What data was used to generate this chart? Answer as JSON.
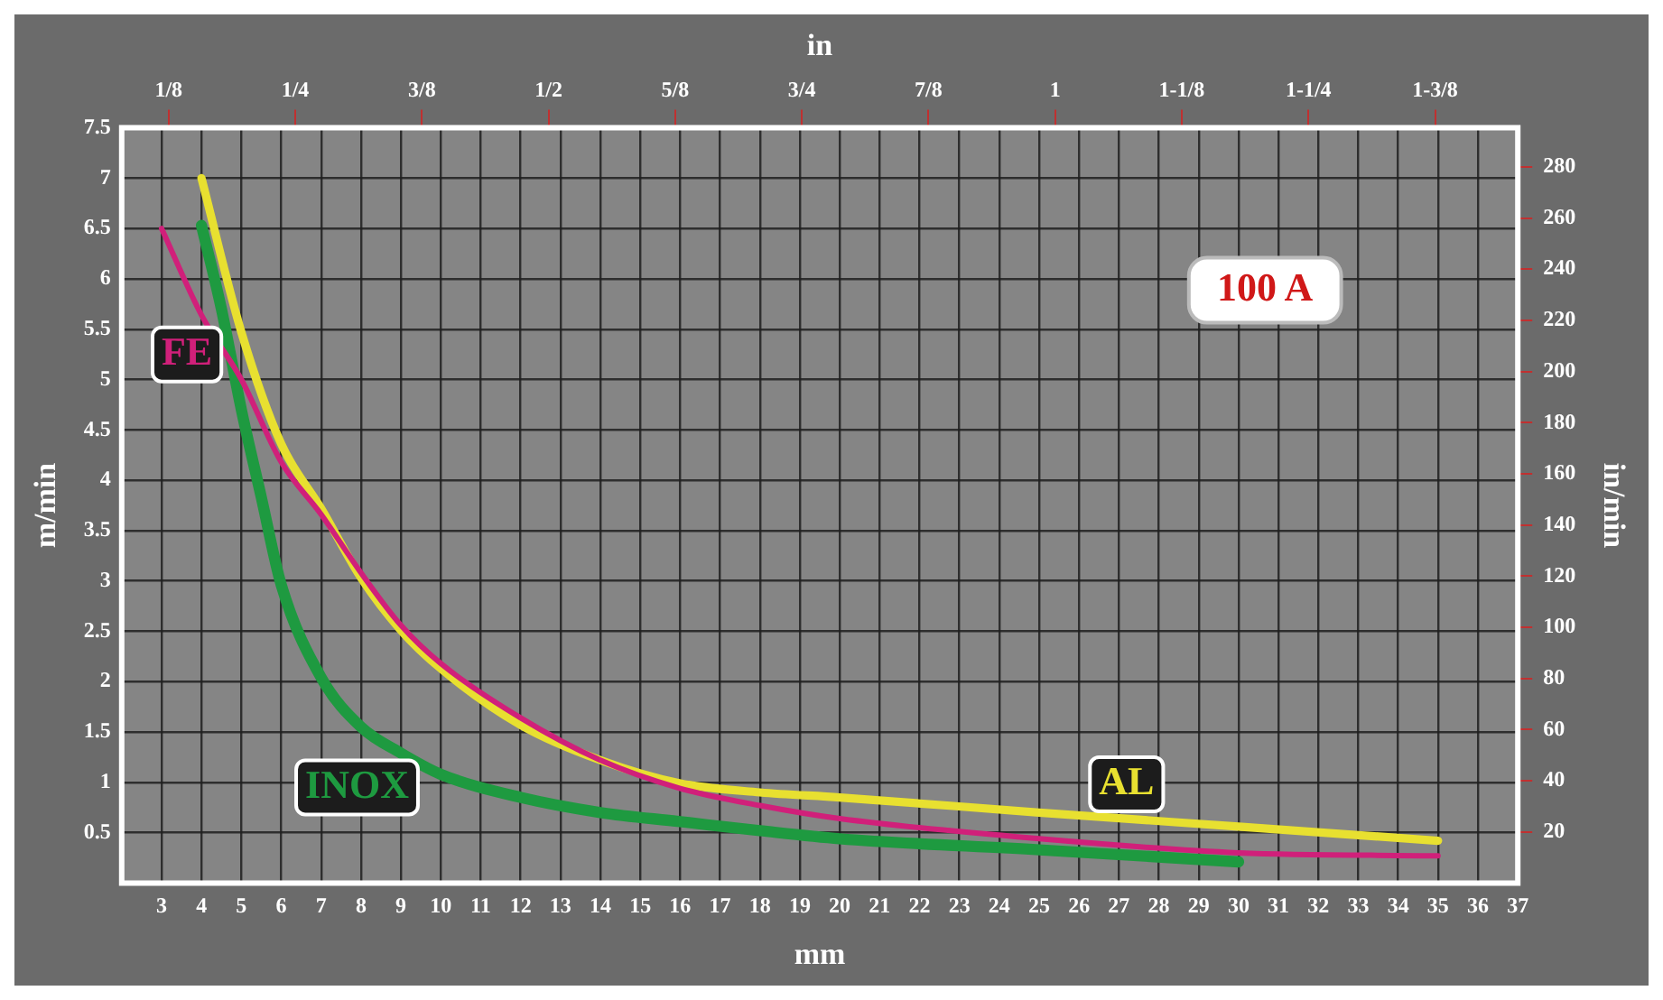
{
  "chart_data": {
    "type": "line",
    "xlabel": "mm",
    "x2label": "in",
    "ylabel": "m/min",
    "y2label": "in/min",
    "annotations": [
      "100 A"
    ],
    "xlim": [
      2,
      37
    ],
    "xticks": [
      3,
      4,
      5,
      6,
      7,
      8,
      9,
      10,
      11,
      12,
      13,
      14,
      15,
      16,
      17,
      18,
      19,
      20,
      21,
      22,
      23,
      24,
      25,
      26,
      27,
      28,
      29,
      30,
      31,
      32,
      33,
      34,
      35,
      36,
      37
    ],
    "x2lim": [
      0.0787,
      1.4567
    ],
    "x2ticks": [
      {
        "value": 0.125,
        "label": "1/8"
      },
      {
        "value": 0.25,
        "label": "1/4"
      },
      {
        "value": 0.375,
        "label": "3/8"
      },
      {
        "value": 0.5,
        "label": "1/2"
      },
      {
        "value": 0.625,
        "label": "5/8"
      },
      {
        "value": 0.75,
        "label": "3/4"
      },
      {
        "value": 0.875,
        "label": "7/8"
      },
      {
        "value": 1,
        "label": "1"
      },
      {
        "value": 1.125,
        "label": "1-1/8"
      },
      {
        "value": 1.25,
        "label": "1-1/4"
      },
      {
        "value": 1.375,
        "label": "1-3/8"
      }
    ],
    "ylim": [
      0,
      7.5
    ],
    "yticks": [
      0.5,
      1.0,
      1.5,
      2.0,
      2.5,
      3.0,
      3.5,
      4.0,
      4.5,
      5.0,
      5.5,
      6.0,
      6.5,
      7.0,
      7.5
    ],
    "y2lim": [
      0,
      295.3
    ],
    "y2ticks": [
      20,
      40,
      60,
      80,
      100,
      120,
      140,
      160,
      180,
      200,
      220,
      240,
      260,
      280
    ],
    "grid": true,
    "legend": false,
    "marker": "none",
    "line_style": "solid",
    "series": [
      {
        "name": "FE",
        "color": "#d0207a",
        "x": [
          3,
          4,
          5,
          6,
          7,
          8,
          9,
          10,
          12,
          14,
          16,
          18,
          20,
          25,
          30,
          35
        ],
        "values": [
          6.5,
          5.64,
          5.0,
          4.18,
          3.66,
          3.08,
          2.56,
          2.18,
          1.64,
          1.22,
          0.94,
          0.77,
          0.64,
          0.44,
          0.3,
          0.27
        ]
      },
      {
        "name": "AL",
        "color": "#e8e030",
        "x": [
          4,
          5,
          6,
          7,
          8,
          9,
          10,
          12,
          14,
          16,
          18,
          20,
          25,
          30,
          35
        ],
        "values": [
          7.0,
          5.47,
          4.36,
          3.72,
          3.03,
          2.51,
          2.13,
          1.57,
          1.22,
          0.99,
          0.9,
          0.85,
          0.7,
          0.56,
          0.42
        ]
      },
      {
        "name": "INOX",
        "color": "#1e9a40",
        "x": [
          4,
          4.5,
          5,
          5.5,
          6,
          7,
          8,
          9,
          10,
          12,
          14,
          16,
          18,
          20,
          25,
          30
        ],
        "values": [
          6.53,
          5.7,
          4.7,
          3.83,
          2.96,
          2.04,
          1.55,
          1.29,
          1.08,
          0.85,
          0.7,
          0.61,
          0.52,
          0.44,
          0.33,
          0.21
        ]
      }
    ]
  }
}
